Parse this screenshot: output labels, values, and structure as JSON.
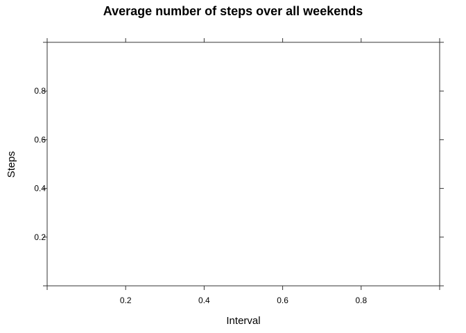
{
  "chart_data": {
    "type": "line",
    "title": "Average number of steps over all weekends",
    "xlabel": "Interval",
    "ylabel": "Steps",
    "xlim": [
      0,
      1
    ],
    "ylim": [
      0,
      1
    ],
    "x_ticks": [
      0.2,
      0.4,
      0.6,
      0.8
    ],
    "y_ticks": [
      0.2,
      0.4,
      0.6,
      0.8
    ],
    "x_tick_labels": [
      "0.2",
      "0.4",
      "0.6",
      "0.8"
    ],
    "y_tick_labels": [
      "0.2",
      "0.4",
      "0.6",
      "0.8"
    ],
    "series": [],
    "grid": false,
    "colors": {
      "frame": "#333333",
      "text": "#000000"
    }
  }
}
